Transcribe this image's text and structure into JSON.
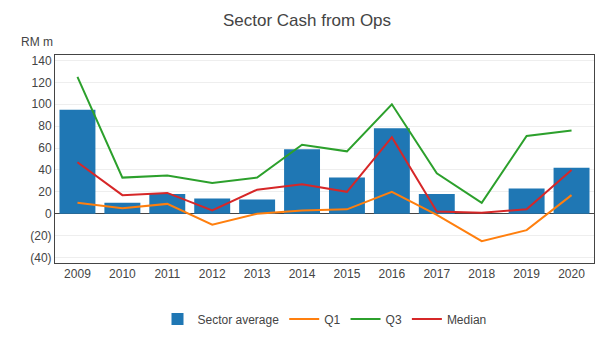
{
  "chart_data": {
    "type": "bar",
    "title": "Sector Cash from Ops",
    "ylabel": "RM m",
    "categories": [
      "2009",
      "2010",
      "2011",
      "2012",
      "2013",
      "2014",
      "2015",
      "2016",
      "2017",
      "2018",
      "2019",
      "2020"
    ],
    "series": [
      {
        "name": "Sector average",
        "type": "bar",
        "values": [
          95,
          10,
          18,
          14,
          13,
          59,
          33,
          78,
          18,
          0,
          23,
          42
        ]
      },
      {
        "name": "Q1",
        "type": "line",
        "values": [
          10,
          5,
          9,
          -10,
          0,
          3,
          4,
          20,
          -1,
          -25,
          -15,
          17
        ]
      },
      {
        "name": "Q3",
        "type": "line",
        "values": [
          125,
          33,
          35,
          28,
          33,
          63,
          57,
          100,
          37,
          10,
          71,
          76
        ]
      },
      {
        "name": "Median",
        "type": "line",
        "values": [
          47,
          17,
          19,
          3,
          22,
          27,
          20,
          70,
          2,
          1,
          4,
          40
        ]
      }
    ],
    "ylim": [
      -45,
      145
    ],
    "yticks": [
      {
        "value": -40,
        "label": "(40)"
      },
      {
        "value": -20,
        "label": "(20)"
      },
      0,
      20,
      40,
      60,
      80,
      100,
      120,
      140
    ],
    "grid": true,
    "legend": "bottom"
  }
}
